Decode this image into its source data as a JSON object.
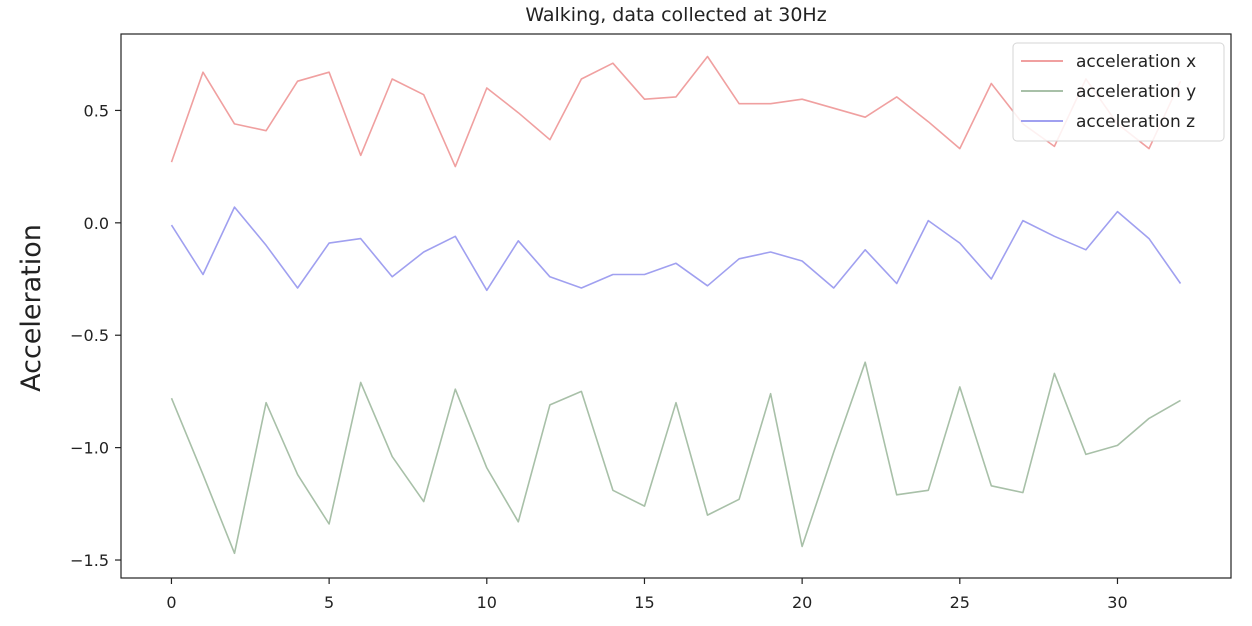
{
  "chart_data": {
    "type": "line",
    "title": "Walking, data collected at 30Hz",
    "xlabel": "",
    "ylabel": "Acceleration",
    "xlim": [
      -1.6,
      33.6
    ],
    "ylim": [
      -1.58,
      0.84
    ],
    "xticks": [
      "0",
      "5",
      "10",
      "15",
      "20",
      "25",
      "30"
    ],
    "xtick_values": [
      0,
      5,
      10,
      15,
      20,
      25,
      30
    ],
    "yticks": [
      "0.5",
      "0.0",
      "−0.5",
      "−1.0",
      "−1.5"
    ],
    "ytick_values": [
      0.5,
      0.0,
      -0.5,
      -1.0,
      -1.5
    ],
    "grid": false,
    "legend_position": "top-right",
    "x": [
      0,
      1,
      2,
      3,
      4,
      5,
      6,
      7,
      8,
      9,
      10,
      11,
      12,
      13,
      14,
      15,
      16,
      17,
      18,
      19,
      20,
      21,
      22,
      23,
      24,
      25,
      26,
      27,
      28,
      29,
      30,
      31,
      32
    ],
    "series": [
      {
        "name": "acceleration x",
        "color": "#f0a0a0",
        "values": [
          0.27,
          0.67,
          0.44,
          0.41,
          0.63,
          0.67,
          0.3,
          0.64,
          0.57,
          0.25,
          0.6,
          0.49,
          0.37,
          0.64,
          0.71,
          0.55,
          0.56,
          0.74,
          0.53,
          0.53,
          0.55,
          0.51,
          0.47,
          0.56,
          0.45,
          0.33,
          0.62,
          0.44,
          0.34,
          0.64,
          0.44,
          0.33,
          0.63
        ]
      },
      {
        "name": "acceleration y",
        "color": "#a8c0a8",
        "values": [
          -0.78,
          -1.12,
          -1.47,
          -0.8,
          -1.12,
          -1.34,
          -0.71,
          -1.04,
          -1.24,
          -0.74,
          -1.09,
          -1.33,
          -0.81,
          -0.75,
          -1.19,
          -1.26,
          -0.8,
          -1.3,
          -1.23,
          -0.76,
          -1.44,
          -1.02,
          -0.62,
          -1.21,
          -1.19,
          -0.73,
          -1.17,
          -1.2,
          -0.67,
          -1.03,
          -0.99,
          -0.87,
          -0.79
        ]
      },
      {
        "name": "acceleration z",
        "color": "#a0a0f0",
        "values": [
          -0.01,
          -0.23,
          0.07,
          -0.1,
          -0.29,
          -0.09,
          -0.07,
          -0.24,
          -0.13,
          -0.06,
          -0.3,
          -0.08,
          -0.24,
          -0.29,
          -0.23,
          -0.23,
          -0.18,
          -0.28,
          -0.16,
          -0.13,
          -0.17,
          -0.29,
          -0.12,
          -0.27,
          0.01,
          -0.09,
          -0.25,
          0.01,
          -0.06,
          -0.12,
          0.05,
          -0.07,
          -0.27
        ]
      }
    ]
  }
}
